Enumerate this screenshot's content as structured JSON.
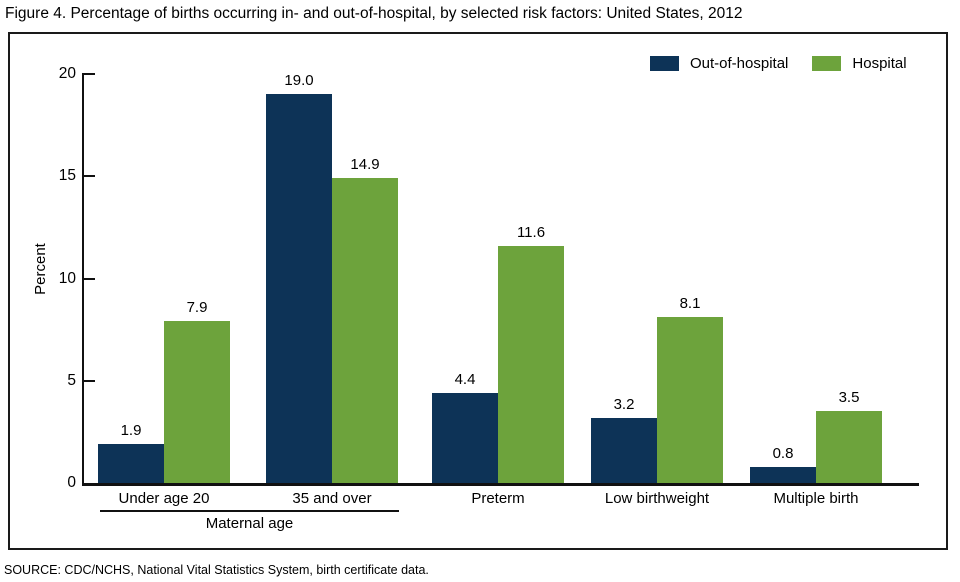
{
  "title": "Figure 4. Percentage of births occurring in- and out-of-hospital, by selected risk factors: United States, 2012",
  "source": "SOURCE: CDC/NCHS, National Vital Statistics System, birth certificate data.",
  "colors": {
    "out_of_hospital": "#0d3357",
    "hospital": "#6da33c",
    "axis": "#111111"
  },
  "chart_data": {
    "type": "bar",
    "categories": [
      "Under age 20",
      "35 and over",
      "Preterm",
      "Low birthweight",
      "Multiple birth"
    ],
    "series": [
      {
        "name": "Out-of-hospital",
        "color": "#0d3357",
        "values": [
          1.9,
          19.0,
          4.4,
          3.2,
          0.8
        ]
      },
      {
        "name": "Hospital",
        "color": "#6da33c",
        "values": [
          7.9,
          14.9,
          11.6,
          8.1,
          3.5
        ]
      }
    ],
    "title": "",
    "xlabel": "",
    "ylabel": "Percent",
    "ylim": [
      0,
      20
    ],
    "yticks": [
      0,
      5,
      10,
      15,
      20
    ],
    "value_labels": true,
    "value_label_decimals": 1,
    "grid": false,
    "legend_position": "top-right",
    "group_label": {
      "label": "Maternal age",
      "category_span": [
        0,
        1
      ]
    }
  }
}
